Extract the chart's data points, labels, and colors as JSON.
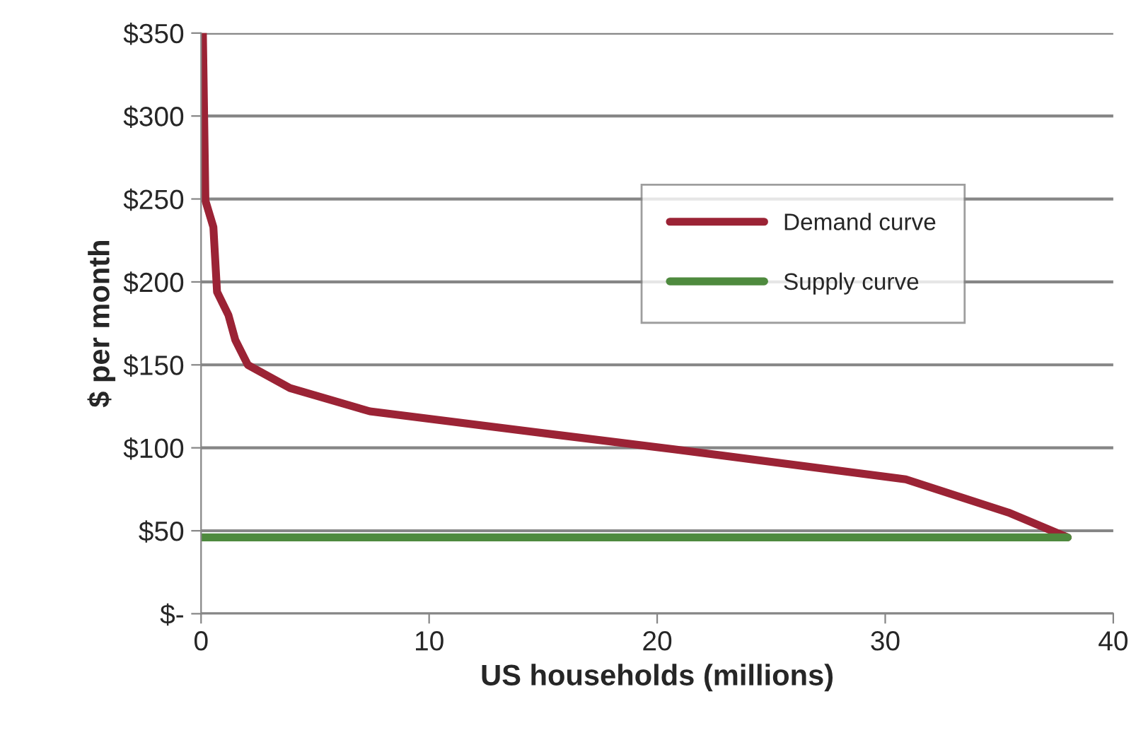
{
  "chart_data": {
    "type": "line",
    "xlabel": "US households (millions)",
    "ylabel": "$ per month",
    "series": [
      {
        "name": "Demand curve",
        "color": "#9b2335",
        "x": [
          0.08,
          0.19,
          0.54,
          0.7,
          1.2,
          1.5,
          2.05,
          3.9,
          7.4,
          15.5,
          20.8,
          30.9,
          35.4,
          38.0
        ],
        "values": [
          350,
          249,
          233,
          194,
          180,
          165,
          150,
          136,
          122,
          108,
          99,
          81,
          61,
          46
        ]
      },
      {
        "name": "Supply curve",
        "color": "#4e8a3e",
        "x": [
          0,
          38.0
        ],
        "values": [
          46,
          46
        ]
      }
    ],
    "xlim": [
      0,
      40
    ],
    "xticks": [
      0,
      10,
      20,
      30,
      40
    ],
    "ylim": [
      0,
      350
    ],
    "yticks": [
      {
        "value": 0,
        "label": "$-"
      },
      {
        "value": 50,
        "label": "$50"
      },
      {
        "value": 100,
        "label": "$100"
      },
      {
        "value": 150,
        "label": "$150"
      },
      {
        "value": 200,
        "label": "$200"
      },
      {
        "value": 250,
        "label": "$250"
      },
      {
        "value": 300,
        "label": "$300"
      },
      {
        "value": 350,
        "label": "$350"
      }
    ],
    "grid": "y",
    "legend": "right",
    "marker": "none",
    "line_style": "solid"
  }
}
